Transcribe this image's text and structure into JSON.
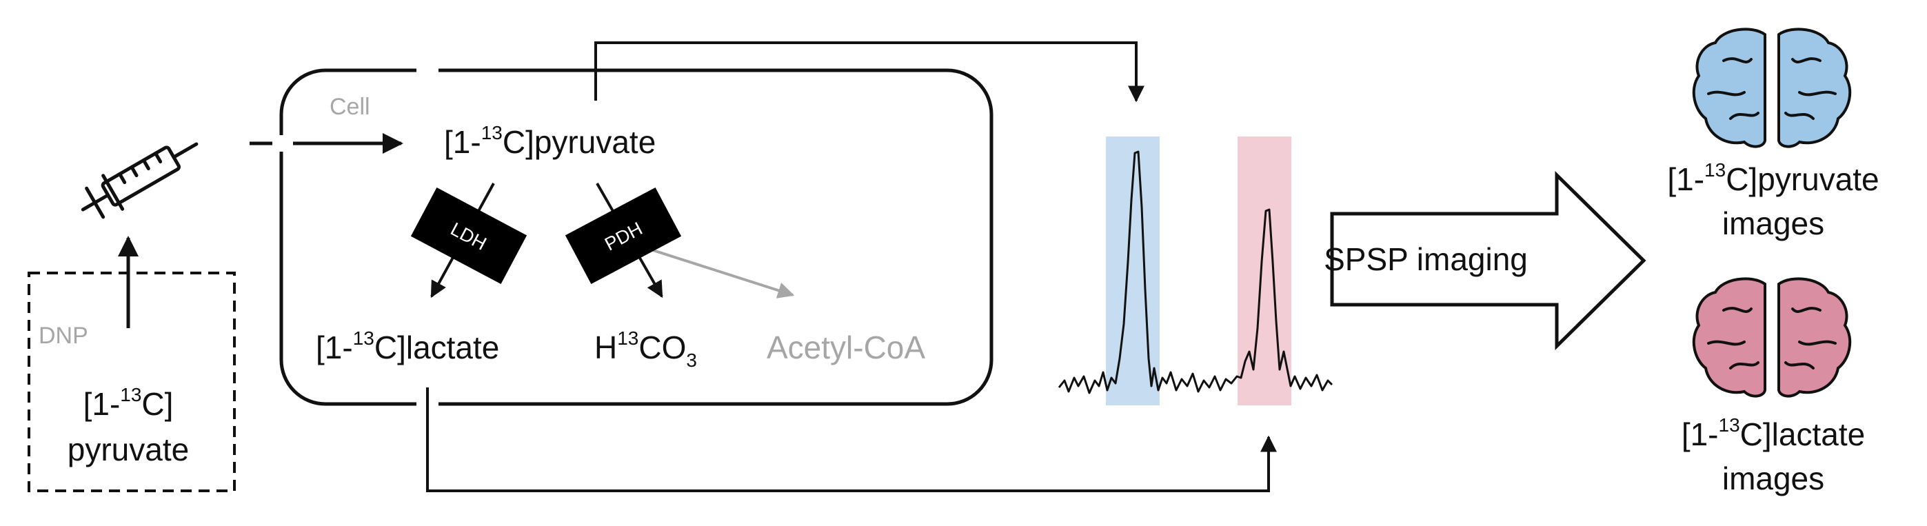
{
  "dnp_box": {
    "tag": "DNP",
    "line1": "[1-",
    "line1_sup": "13",
    "line1_end": "C]",
    "line2": "pyruvate"
  },
  "cell": {
    "tag": "Cell",
    "pyruvate": {
      "pre": "[1-",
      "sup": "13",
      "post": "C]pyruvate"
    },
    "lactate": {
      "pre": "[1-",
      "sup": "13",
      "post": "C]lactate"
    },
    "bicarbonate": {
      "pre": "H",
      "sup": "13",
      "mid": "CO",
      "sub": "3"
    },
    "acetyl_coa": "Acetyl-CoA",
    "enzyme_ldh": "LDH",
    "enzyme_pdh": "PDH"
  },
  "spectrum": {
    "pyruvate_band_color": "#c6dcf0",
    "lactate_band_color": "#f2cdd6"
  },
  "imaging_arrow": {
    "label": "SPSP imaging"
  },
  "outputs": {
    "pyruvate": {
      "pre": "[1-",
      "sup": "13",
      "post": "C]pyruvate",
      "line2": "images",
      "color": "#9ec6e6"
    },
    "lactate": {
      "pre": "[1-",
      "sup": "13",
      "post": "C]lactate",
      "line2": "images",
      "color": "#d98fa1"
    }
  },
  "icons": [
    "syringe-icon",
    "brain-icon"
  ]
}
